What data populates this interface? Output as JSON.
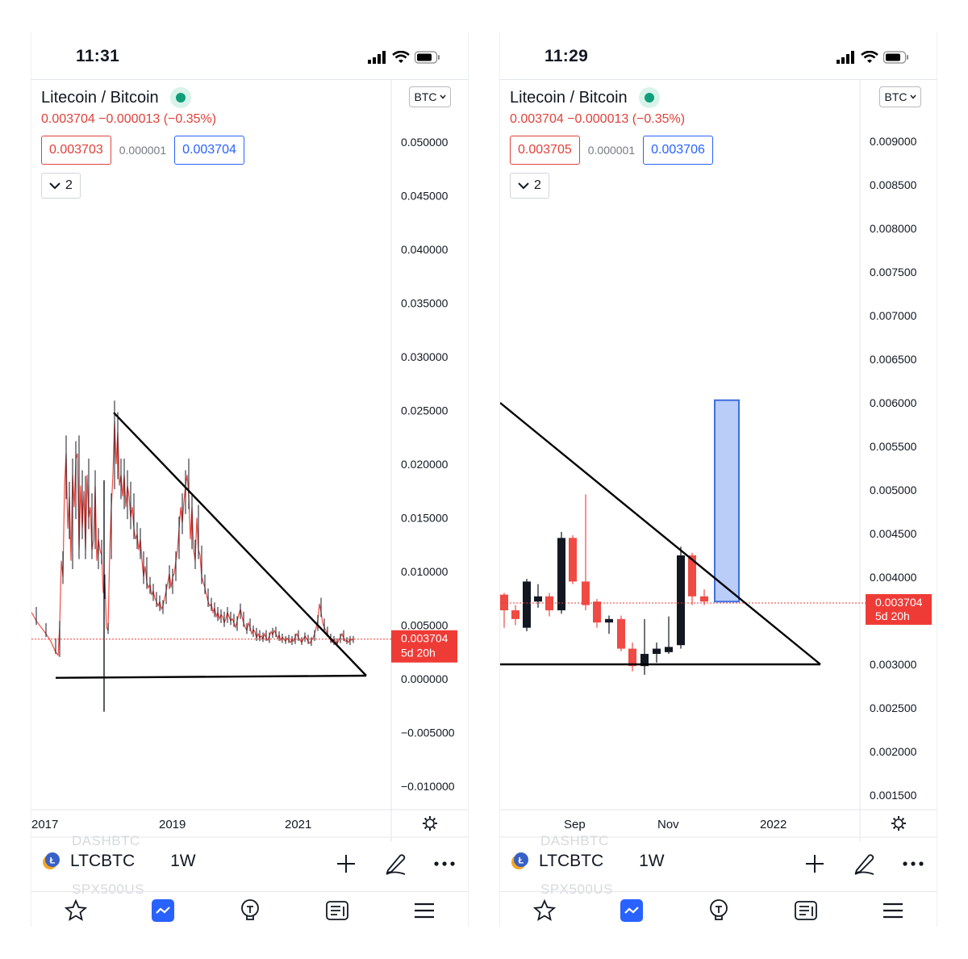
{
  "screens": [
    {
      "time": "11:31",
      "title": "Litecoin / Bitcoin",
      "change_line": "0.003704 −0.000013 (−0.35%)",
      "bid": "0.003703",
      "spread": "0.000001",
      "ask": "0.003704",
      "indicator_count": "2",
      "scale_label": "BTC",
      "price_axis": [
        "0.050000",
        "0.045000",
        "0.040000",
        "0.035000",
        "0.030000",
        "0.025000",
        "0.020000",
        "0.015000",
        "0.010000",
        "0.005000",
        "0.000000",
        "−0.005000",
        "−0.010000"
      ],
      "last_price": "0.003704",
      "countdown": "5d 20h",
      "time_axis": [
        "2017",
        "2019",
        "2021"
      ],
      "ghost_top": "DASHBTC",
      "ghost_bottom": "SPX500US",
      "symbol": "LTCBTC",
      "interval": "1W"
    },
    {
      "time": "11:29",
      "title": "Litecoin / Bitcoin",
      "change_line": "0.003704 −0.000013 (−0.35%)",
      "bid": "0.003705",
      "spread": "0.000001",
      "ask": "0.003706",
      "indicator_count": "2",
      "scale_label": "BTC",
      "price_axis": [
        "0.009000",
        "0.008500",
        "0.008000",
        "0.007500",
        "0.007000",
        "0.006500",
        "0.006000",
        "0.005500",
        "0.005000",
        "0.004500",
        "0.004000",
        "0.003500",
        "0.003000",
        "0.002500",
        "0.002000",
        "0.001500"
      ],
      "last_price": "0.003704",
      "countdown": "5d 20h",
      "time_axis": [
        "Sep",
        "Nov",
        "2022"
      ],
      "ghost_top": "DASHBTC",
      "ghost_bottom": "SPX500US",
      "symbol": "LTCBTC",
      "interval": "1W"
    }
  ],
  "colors": {
    "up": "#131722",
    "down": "#ef4a43",
    "bid": "#e0413a",
    "ask": "#2962ff",
    "target_box": "#b9cdf8",
    "price_tag": "#ef3b36"
  },
  "icons": {
    "nav": [
      "star-icon",
      "chart-icon",
      "idea-bulb-icon",
      "news-icon",
      "menu-icon"
    ],
    "tools": [
      "plus-icon",
      "pen-icon",
      "more-icon"
    ]
  }
}
